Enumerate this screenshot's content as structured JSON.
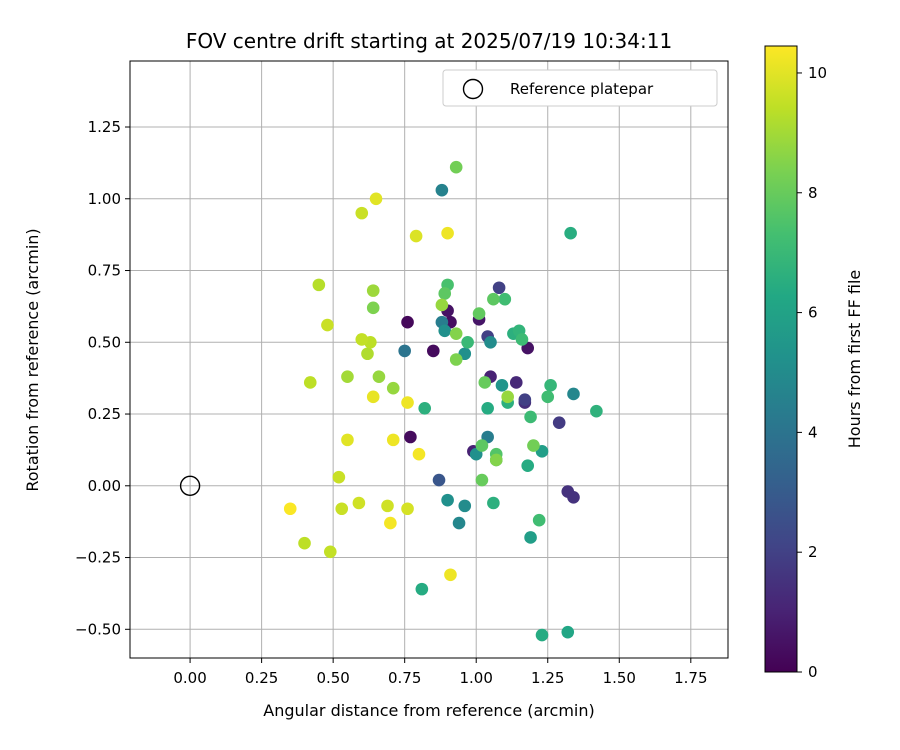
{
  "chart_data": {
    "type": "scatter",
    "title": "FOV centre drift starting at 2025/07/19 10:34:11",
    "xlabel": "Angular distance from reference (arcmin)",
    "ylabel": "Rotation from reference (arcmin)",
    "xlim": [
      -0.21,
      1.88
    ],
    "ylim": [
      -0.6,
      1.48
    ],
    "x_ticks": [
      "0.00",
      "0.25",
      "0.50",
      "0.75",
      "1.00",
      "1.25",
      "1.50",
      "1.75"
    ],
    "y_ticks": [
      "−0.50",
      "−0.25",
      "0.00",
      "0.25",
      "0.50",
      "0.75",
      "1.00",
      "1.25"
    ],
    "grid": true,
    "legend": {
      "position": "top-right",
      "label": "Reference platepar"
    },
    "reference_point": {
      "x": 0.0,
      "y": 0.0
    },
    "colorbar": {
      "label": "Hours from first FF file",
      "colormap": "viridis",
      "range": [
        0,
        10.45
      ],
      "ticks": [
        "0",
        "2",
        "4",
        "6",
        "8",
        "10"
      ]
    },
    "points": [
      {
        "x": 0.76,
        "y": 0.57,
        "h": 0.2
      },
      {
        "x": 0.85,
        "y": 0.47,
        "h": 0.3
      },
      {
        "x": 0.77,
        "y": 0.17,
        "h": 0.3
      },
      {
        "x": 0.9,
        "y": 0.61,
        "h": 0.5
      },
      {
        "x": 0.91,
        "y": 0.57,
        "h": 0.4
      },
      {
        "x": 1.01,
        "y": 0.58,
        "h": 0.6
      },
      {
        "x": 1.18,
        "y": 0.48,
        "h": 0.5
      },
      {
        "x": 1.05,
        "y": 0.38,
        "h": 1.0
      },
      {
        "x": 0.99,
        "y": 0.12,
        "h": 1.0
      },
      {
        "x": 1.14,
        "y": 0.36,
        "h": 1.2
      },
      {
        "x": 1.17,
        "y": 0.29,
        "h": 1.4
      },
      {
        "x": 1.32,
        "y": -0.02,
        "h": 1.5
      },
      {
        "x": 1.34,
        "y": -0.04,
        "h": 1.5
      },
      {
        "x": 1.29,
        "y": 0.22,
        "h": 1.8
      },
      {
        "x": 1.08,
        "y": 0.69,
        "h": 2.0
      },
      {
        "x": 1.17,
        "y": 0.3,
        "h": 2.0
      },
      {
        "x": 1.04,
        "y": 0.52,
        "h": 2.0
      },
      {
        "x": 0.87,
        "y": 0.02,
        "h": 2.8
      },
      {
        "x": 0.75,
        "y": 0.47,
        "h": 4.0
      },
      {
        "x": 0.88,
        "y": 0.57,
        "h": 4.4
      },
      {
        "x": 0.88,
        "y": 1.03,
        "h": 4.6
      },
      {
        "x": 0.94,
        "y": -0.13,
        "h": 4.8
      },
      {
        "x": 0.96,
        "y": -0.07,
        "h": 5.0
      },
      {
        "x": 1.04,
        "y": 0.17,
        "h": 4.4
      },
      {
        "x": 1.05,
        "y": 0.5,
        "h": 5.0
      },
      {
        "x": 1.34,
        "y": 0.32,
        "h": 4.8
      },
      {
        "x": 0.9,
        "y": -0.05,
        "h": 5.2
      },
      {
        "x": 0.89,
        "y": 0.54,
        "h": 5.2
      },
      {
        "x": 0.96,
        "y": 0.46,
        "h": 5.2
      },
      {
        "x": 1.0,
        "y": 0.11,
        "h": 5.2
      },
      {
        "x": 1.09,
        "y": 0.35,
        "h": 5.4
      },
      {
        "x": 1.07,
        "y": 0.09,
        "h": 5.8
      },
      {
        "x": 1.23,
        "y": 0.12,
        "h": 5.8
      },
      {
        "x": 1.19,
        "y": -0.18,
        "h": 5.8
      },
      {
        "x": 1.04,
        "y": 0.27,
        "h": 6.4
      },
      {
        "x": 1.18,
        "y": 0.07,
        "h": 6.4
      },
      {
        "x": 0.81,
        "y": -0.36,
        "h": 6.4
      },
      {
        "x": 1.23,
        "y": -0.52,
        "h": 6.4
      },
      {
        "x": 1.32,
        "y": -0.51,
        "h": 6.2
      },
      {
        "x": 1.33,
        "y": 0.88,
        "h": 6.5
      },
      {
        "x": 1.42,
        "y": 0.26,
        "h": 6.7
      },
      {
        "x": 0.82,
        "y": 0.27,
        "h": 6.6
      },
      {
        "x": 1.06,
        "y": -0.06,
        "h": 6.6
      },
      {
        "x": 1.11,
        "y": 0.29,
        "h": 6.6
      },
      {
        "x": 1.13,
        "y": 0.53,
        "h": 6.6
      },
      {
        "x": 1.15,
        "y": 0.54,
        "h": 6.8
      },
      {
        "x": 1.16,
        "y": 0.51,
        "h": 7.1
      },
      {
        "x": 1.26,
        "y": 0.35,
        "h": 6.9
      },
      {
        "x": 1.25,
        "y": 0.31,
        "h": 7.2
      },
      {
        "x": 1.19,
        "y": 0.24,
        "h": 7.1
      },
      {
        "x": 1.22,
        "y": -0.12,
        "h": 7.2
      },
      {
        "x": 1.1,
        "y": 0.65,
        "h": 7.2
      },
      {
        "x": 0.97,
        "y": 0.5,
        "h": 7.0
      },
      {
        "x": 1.06,
        "y": 0.65,
        "h": 7.8
      },
      {
        "x": 0.9,
        "y": 0.7,
        "h": 7.4
      },
      {
        "x": 0.89,
        "y": 0.67,
        "h": 7.8
      },
      {
        "x": 1.01,
        "y": 0.6,
        "h": 7.9
      },
      {
        "x": 1.02,
        "y": 0.14,
        "h": 7.8
      },
      {
        "x": 1.02,
        "y": 0.02,
        "h": 8.0
      },
      {
        "x": 1.07,
        "y": 0.11,
        "h": 7.6
      },
      {
        "x": 1.03,
        "y": 0.36,
        "h": 8.0
      },
      {
        "x": 1.2,
        "y": 0.14,
        "h": 8.2
      },
      {
        "x": 0.93,
        "y": 1.11,
        "h": 8.2
      },
      {
        "x": 0.64,
        "y": 0.62,
        "h": 8.4
      },
      {
        "x": 0.93,
        "y": 0.53,
        "h": 8.5
      },
      {
        "x": 0.93,
        "y": 0.44,
        "h": 8.4
      },
      {
        "x": 1.07,
        "y": 0.09,
        "h": 8.5
      },
      {
        "x": 1.11,
        "y": 0.31,
        "h": 8.8
      },
      {
        "x": 0.88,
        "y": 0.63,
        "h": 8.8
      },
      {
        "x": 0.64,
        "y": 0.68,
        "h": 8.9
      },
      {
        "x": 0.66,
        "y": 0.38,
        "h": 8.8
      },
      {
        "x": 0.71,
        "y": 0.34,
        "h": 8.8
      },
      {
        "x": 0.55,
        "y": 0.38,
        "h": 9.0
      },
      {
        "x": 0.62,
        "y": 0.46,
        "h": 9.2
      },
      {
        "x": 0.63,
        "y": 0.5,
        "h": 9.4
      },
      {
        "x": 0.6,
        "y": 0.51,
        "h": 9.5
      },
      {
        "x": 0.42,
        "y": 0.36,
        "h": 9.4
      },
      {
        "x": 0.45,
        "y": 0.7,
        "h": 9.3
      },
      {
        "x": 0.48,
        "y": 0.56,
        "h": 9.6
      },
      {
        "x": 0.4,
        "y": -0.2,
        "h": 9.4
      },
      {
        "x": 0.49,
        "y": -0.23,
        "h": 9.5
      },
      {
        "x": 0.52,
        "y": 0.03,
        "h": 9.6
      },
      {
        "x": 0.53,
        "y": -0.08,
        "h": 9.6
      },
      {
        "x": 0.59,
        "y": -0.06,
        "h": 9.7
      },
      {
        "x": 0.69,
        "y": -0.07,
        "h": 9.7
      },
      {
        "x": 0.76,
        "y": -0.08,
        "h": 9.8
      },
      {
        "x": 0.6,
        "y": 0.95,
        "h": 9.6
      },
      {
        "x": 0.65,
        "y": 1.0,
        "h": 10.0
      },
      {
        "x": 0.79,
        "y": 0.87,
        "h": 9.9
      },
      {
        "x": 0.9,
        "y": 0.88,
        "h": 10.2
      },
      {
        "x": 0.55,
        "y": 0.16,
        "h": 10.0
      },
      {
        "x": 0.64,
        "y": 0.31,
        "h": 10.1
      },
      {
        "x": 0.71,
        "y": 0.16,
        "h": 10.2
      },
      {
        "x": 0.76,
        "y": 0.29,
        "h": 10.2
      },
      {
        "x": 0.8,
        "y": 0.11,
        "h": 10.3
      },
      {
        "x": 0.7,
        "y": -0.13,
        "h": 10.3
      },
      {
        "x": 0.35,
        "y": -0.08,
        "h": 10.4
      },
      {
        "x": 0.91,
        "y": -0.31,
        "h": 10.2
      }
    ]
  }
}
